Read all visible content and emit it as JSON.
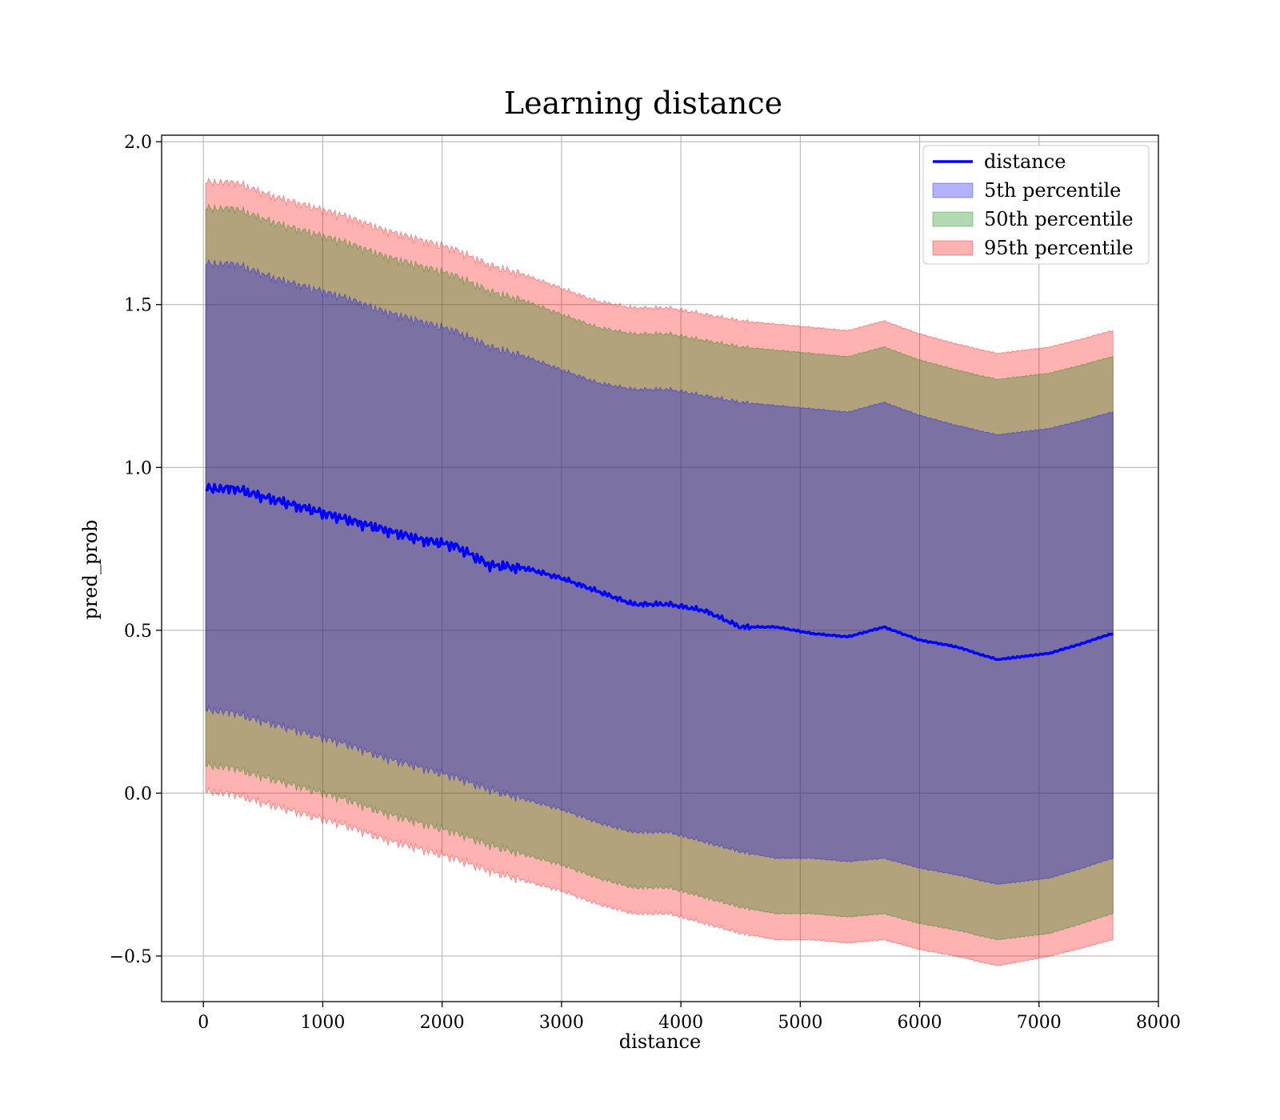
{
  "chart_data": {
    "type": "line",
    "title": "Learning distance",
    "xlabel": "distance",
    "ylabel": "pred_prob",
    "xlim": [
      -350,
      8000
    ],
    "ylim": [
      -0.64,
      2.02
    ],
    "xticks": [
      0,
      1000,
      2000,
      3000,
      4000,
      5000,
      6000,
      7000,
      8000
    ],
    "xtick_labels": [
      "0",
      "1000",
      "2000",
      "3000",
      "4000",
      "5000",
      "6000",
      "7000",
      "8000"
    ],
    "yticks": [
      -0.5,
      0.0,
      0.5,
      1.0,
      1.5,
      2.0
    ],
    "ytick_labels": [
      "−0.5",
      "0.0",
      "0.5",
      "1.0",
      "1.5",
      "2.0"
    ],
    "grid": true,
    "legend_position": "top-right",
    "x": [
      20,
      300,
      600,
      900,
      1200,
      1500,
      1800,
      2100,
      2400,
      2700,
      3000,
      3300,
      3600,
      3900,
      4200,
      4500,
      4800,
      5100,
      5400,
      5700,
      6000,
      6300,
      6650,
      7100,
      7620
    ],
    "series": [
      {
        "name": "distance",
        "kind": "line",
        "color": "#0000ff",
        "values": [
          0.94,
          0.93,
          0.9,
          0.87,
          0.84,
          0.81,
          0.78,
          0.76,
          0.7,
          0.69,
          0.66,
          0.62,
          0.58,
          0.58,
          0.56,
          0.51,
          0.51,
          0.49,
          0.48,
          0.51,
          0.47,
          0.45,
          0.41,
          0.43,
          0.49
        ]
      },
      {
        "name": "5th percentile",
        "kind": "band",
        "color": "#0000ff",
        "alpha": 0.3,
        "lower": [
          0.26,
          0.24,
          0.21,
          0.18,
          0.15,
          0.11,
          0.08,
          0.05,
          0.01,
          -0.02,
          -0.05,
          -0.09,
          -0.12,
          -0.12,
          -0.15,
          -0.18,
          -0.2,
          -0.2,
          -0.21,
          -0.2,
          -0.23,
          -0.25,
          -0.28,
          -0.26,
          -0.2
        ],
        "upper": [
          1.63,
          1.62,
          1.58,
          1.55,
          1.52,
          1.48,
          1.45,
          1.42,
          1.37,
          1.34,
          1.3,
          1.26,
          1.24,
          1.24,
          1.22,
          1.2,
          1.19,
          1.18,
          1.17,
          1.2,
          1.16,
          1.13,
          1.1,
          1.12,
          1.17
        ]
      },
      {
        "name": "50th percentile",
        "kind": "band",
        "color": "#008000",
        "alpha": 0.3,
        "lower": [
          0.09,
          0.07,
          0.04,
          0.01,
          -0.02,
          -0.06,
          -0.09,
          -0.12,
          -0.16,
          -0.19,
          -0.22,
          -0.26,
          -0.29,
          -0.29,
          -0.32,
          -0.35,
          -0.37,
          -0.37,
          -0.38,
          -0.37,
          -0.4,
          -0.42,
          -0.45,
          -0.43,
          -0.37
        ],
        "upper": [
          1.8,
          1.79,
          1.75,
          1.72,
          1.69,
          1.65,
          1.62,
          1.59,
          1.54,
          1.51,
          1.47,
          1.43,
          1.41,
          1.41,
          1.39,
          1.37,
          1.36,
          1.35,
          1.34,
          1.37,
          1.33,
          1.3,
          1.27,
          1.29,
          1.34
        ]
      },
      {
        "name": "95th percentile",
        "kind": "band",
        "color": "#ff0000",
        "alpha": 0.3,
        "lower": [
          0.01,
          -0.01,
          -0.04,
          -0.07,
          -0.1,
          -0.14,
          -0.17,
          -0.2,
          -0.24,
          -0.27,
          -0.3,
          -0.34,
          -0.37,
          -0.37,
          -0.4,
          -0.43,
          -0.45,
          -0.45,
          -0.46,
          -0.45,
          -0.48,
          -0.5,
          -0.53,
          -0.5,
          -0.45
        ],
        "upper": [
          1.88,
          1.87,
          1.83,
          1.8,
          1.77,
          1.73,
          1.7,
          1.67,
          1.62,
          1.59,
          1.55,
          1.51,
          1.49,
          1.49,
          1.47,
          1.45,
          1.44,
          1.43,
          1.42,
          1.45,
          1.41,
          1.38,
          1.35,
          1.37,
          1.42
        ]
      }
    ]
  }
}
